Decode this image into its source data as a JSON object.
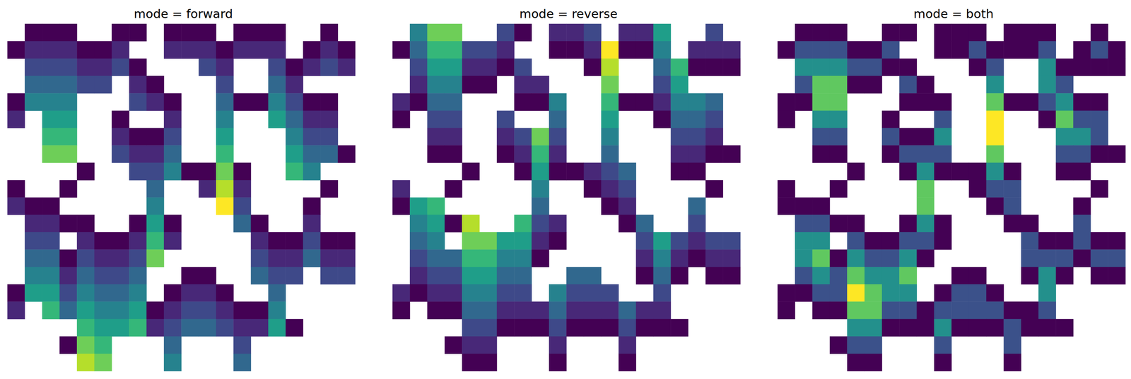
{
  "chart_data": [
    {
      "type": "heatmap",
      "title": "mode = forward",
      "color": "viridis",
      "tick_labels": false,
      "zlim": [
        0,
        9
      ],
      "cells": [
        [
          null,
          0,
          0,
          0,
          null,
          null,
          0,
          0,
          null,
          0,
          0,
          0,
          null,
          0,
          0,
          0,
          null,
          null,
          0,
          null
        ],
        [
          0,
          1,
          1,
          1,
          0,
          0,
          1,
          null,
          null,
          1,
          1,
          1,
          0,
          1,
          1,
          1,
          null,
          0,
          1,
          0
        ],
        [
          null,
          2,
          2,
          2,
          1,
          1,
          2,
          0,
          null,
          null,
          null,
          2,
          1,
          null,
          null,
          2,
          0,
          1,
          2,
          1
        ],
        [
          null,
          3,
          3,
          3,
          2,
          2,
          null,
          1,
          0,
          null,
          null,
          null,
          2,
          null,
          null,
          3,
          1,
          null,
          null,
          null
        ],
        [
          0,
          4,
          4,
          4,
          null,
          null,
          null,
          2,
          1,
          0,
          null,
          null,
          3,
          0,
          0,
          4,
          2,
          0,
          0,
          null
        ],
        [
          1,
          null,
          5,
          5,
          null,
          null,
          0,
          null,
          null,
          1,
          null,
          null,
          4,
          null,
          null,
          5,
          3,
          1,
          1,
          null
        ],
        [
          null,
          null,
          6,
          6,
          null,
          null,
          1,
          0,
          0,
          2,
          null,
          null,
          5,
          null,
          null,
          null,
          4,
          2,
          2,
          null
        ],
        [
          null,
          null,
          7,
          7,
          null,
          null,
          2,
          1,
          1,
          3,
          null,
          null,
          6,
          null,
          null,
          null,
          5,
          3,
          3,
          0
        ],
        [
          null,
          null,
          null,
          null,
          0,
          null,
          null,
          2,
          2,
          4,
          0,
          0,
          7,
          0,
          null,
          null,
          6,
          4,
          null,
          null
        ],
        [
          0,
          null,
          null,
          0,
          null,
          null,
          null,
          null,
          3,
          null,
          null,
          1,
          8,
          1,
          null,
          null,
          null,
          null,
          0,
          null
        ],
        [
          1,
          0,
          0,
          null,
          null,
          null,
          null,
          null,
          4,
          null,
          null,
          null,
          9,
          2,
          null,
          null,
          null,
          0,
          null,
          null
        ],
        [
          null,
          1,
          1,
          0,
          0,
          null,
          null,
          0,
          5,
          0,
          null,
          null,
          null,
          3,
          0,
          null,
          null,
          1,
          null,
          null
        ],
        [
          null,
          2,
          2,
          null,
          1,
          0,
          0,
          1,
          6,
          1,
          null,
          null,
          null,
          null,
          1,
          0,
          0,
          2,
          0,
          0
        ],
        [
          null,
          3,
          3,
          0,
          2,
          1,
          1,
          2,
          7,
          null,
          null,
          null,
          null,
          null,
          2,
          1,
          1,
          3,
          1,
          1
        ],
        [
          null,
          4,
          4,
          1,
          3,
          2,
          2,
          3,
          null,
          null,
          0,
          0,
          null,
          null,
          3,
          2,
          2,
          null,
          2,
          2
        ],
        [
          0,
          5,
          5,
          2,
          4,
          3,
          3,
          4,
          null,
          0,
          1,
          1,
          0,
          null,
          null,
          3,
          null,
          null,
          null,
          null
        ],
        [
          1,
          null,
          6,
          3,
          5,
          4,
          4,
          5,
          0,
          1,
          2,
          2,
          1,
          0,
          0,
          4,
          null,
          null,
          null,
          null
        ],
        [
          null,
          null,
          null,
          null,
          6,
          5,
          5,
          6,
          1,
          2,
          3,
          3,
          2,
          1,
          1,
          5,
          0,
          null,
          null,
          null
        ],
        [
          null,
          null,
          null,
          0,
          7,
          6,
          null,
          null,
          null,
          3,
          null,
          null,
          null,
          2,
          null,
          null,
          null,
          null,
          null,
          null
        ],
        [
          null,
          null,
          null,
          null,
          8,
          7,
          null,
          null,
          null,
          4,
          null,
          null,
          null,
          3,
          null,
          null,
          null,
          null,
          null,
          null
        ]
      ]
    },
    {
      "type": "heatmap",
      "title": "mode = reverse",
      "color": "viridis",
      "tick_labels": false,
      "zlim": [
        0,
        9
      ],
      "cells": [
        [
          null,
          4,
          7,
          7,
          null,
          null,
          2,
          0,
          null,
          1,
          1,
          2,
          null,
          1,
          1,
          5,
          null,
          null,
          2,
          null
        ],
        [
          0,
          3,
          6,
          6,
          2,
          2,
          1,
          null,
          null,
          0,
          0,
          1,
          9,
          0,
          0,
          4,
          null,
          1,
          1,
          1
        ],
        [
          null,
          2,
          5,
          5,
          1,
          1,
          0,
          2,
          null,
          null,
          null,
          0,
          8,
          null,
          null,
          3,
          6,
          0,
          0,
          0
        ],
        [
          null,
          1,
          4,
          4,
          0,
          0,
          null,
          1,
          1,
          null,
          null,
          null,
          7,
          null,
          null,
          2,
          5,
          null,
          null,
          null
        ],
        [
          1,
          0,
          3,
          3,
          null,
          null,
          null,
          0,
          0,
          4,
          null,
          null,
          6,
          0,
          0,
          1,
          4,
          4,
          3,
          null
        ],
        [
          0,
          null,
          2,
          2,
          null,
          null,
          2,
          null,
          null,
          3,
          null,
          null,
          5,
          null,
          null,
          0,
          3,
          3,
          2,
          null
        ],
        [
          null,
          null,
          1,
          1,
          null,
          null,
          1,
          2,
          7,
          2,
          null,
          null,
          4,
          null,
          null,
          null,
          2,
          2,
          1,
          null
        ],
        [
          null,
          null,
          0,
          0,
          null,
          null,
          0,
          1,
          6,
          1,
          null,
          null,
          3,
          null,
          null,
          null,
          1,
          1,
          0,
          0
        ],
        [
          null,
          null,
          null,
          null,
          0,
          null,
          null,
          0,
          5,
          0,
          0,
          1,
          2,
          3,
          null,
          null,
          0,
          0,
          null,
          null
        ],
        [
          1,
          null,
          null,
          0,
          null,
          null,
          null,
          null,
          4,
          null,
          null,
          0,
          1,
          2,
          null,
          null,
          null,
          null,
          0,
          null
        ],
        [
          0,
          5,
          6,
          null,
          null,
          null,
          null,
          null,
          3,
          null,
          null,
          null,
          0,
          1,
          null,
          null,
          null,
          3,
          null,
          null
        ],
        [
          null,
          4,
          5,
          0,
          8,
          null,
          null,
          6,
          2,
          1,
          null,
          null,
          null,
          0,
          3,
          null,
          null,
          2,
          null,
          null
        ],
        [
          null,
          3,
          4,
          null,
          7,
          7,
          5,
          5,
          1,
          0,
          null,
          null,
          null,
          null,
          2,
          5,
          2,
          1,
          2,
          2
        ],
        [
          null,
          2,
          3,
          3,
          6,
          6,
          4,
          4,
          0,
          null,
          null,
          null,
          null,
          null,
          1,
          4,
          1,
          0,
          1,
          1
        ],
        [
          null,
          1,
          2,
          2,
          5,
          5,
          3,
          3,
          null,
          null,
          3,
          3,
          null,
          null,
          0,
          3,
          0,
          null,
          0,
          0
        ],
        [
          1,
          0,
          1,
          1,
          4,
          4,
          2,
          2,
          null,
          4,
          2,
          2,
          2,
          null,
          null,
          2,
          null,
          null,
          null,
          null
        ],
        [
          0,
          null,
          0,
          0,
          3,
          3,
          1,
          1,
          1,
          3,
          1,
          1,
          1,
          3,
          1,
          1,
          null,
          null,
          null,
          null
        ],
        [
          null,
          null,
          null,
          null,
          2,
          2,
          0,
          0,
          0,
          2,
          0,
          0,
          0,
          2,
          0,
          0,
          0,
          null,
          null,
          null
        ],
        [
          null,
          null,
          null,
          0,
          1,
          1,
          null,
          null,
          null,
          1,
          null,
          null,
          null,
          1,
          null,
          null,
          null,
          null,
          null,
          null
        ],
        [
          null,
          null,
          null,
          null,
          0,
          0,
          null,
          null,
          null,
          0,
          null,
          null,
          null,
          0,
          null,
          null,
          null,
          null,
          null,
          null
        ]
      ]
    },
    {
      "type": "heatmap",
      "title": "mode = both",
      "color": "viridis",
      "tick_labels": false,
      "zlim": [
        0,
        8
      ],
      "cells": [
        [
          null,
          0,
          0,
          0,
          null,
          null,
          0,
          0,
          null,
          0,
          0,
          0,
          null,
          0,
          0,
          0,
          null,
          null,
          0,
          null
        ],
        [
          0,
          2,
          2,
          2,
          0,
          0,
          2,
          null,
          null,
          0,
          0,
          2,
          0,
          0,
          0,
          2,
          null,
          0,
          2,
          0
        ],
        [
          null,
          4,
          4,
          4,
          2,
          2,
          0,
          0,
          null,
          null,
          null,
          0,
          2,
          null,
          null,
          4,
          0,
          0,
          0,
          0
        ],
        [
          null,
          2,
          6,
          6,
          0,
          0,
          null,
          2,
          0,
          null,
          null,
          null,
          4,
          null,
          null,
          4,
          2,
          null,
          null,
          null
        ],
        [
          0,
          0,
          6,
          6,
          null,
          null,
          null,
          0,
          0,
          0,
          null,
          null,
          6,
          0,
          0,
          2,
          4,
          0,
          0,
          null
        ],
        [
          0,
          null,
          4,
          4,
          null,
          null,
          0,
          null,
          null,
          2,
          null,
          null,
          8,
          null,
          null,
          0,
          6,
          2,
          2,
          null
        ],
        [
          null,
          null,
          2,
          2,
          null,
          null,
          2,
          0,
          0,
          4,
          null,
          null,
          8,
          null,
          null,
          null,
          4,
          4,
          2,
          null
        ],
        [
          null,
          null,
          0,
          0,
          null,
          null,
          0,
          2,
          2,
          2,
          null,
          null,
          6,
          null,
          null,
          null,
          2,
          2,
          0,
          0
        ],
        [
          null,
          null,
          null,
          null,
          0,
          null,
          null,
          0,
          4,
          0,
          0,
          0,
          4,
          0,
          null,
          null,
          0,
          0,
          null,
          null
        ],
        [
          0,
          null,
          null,
          0,
          null,
          null,
          null,
          null,
          6,
          null,
          null,
          0,
          2,
          2,
          null,
          null,
          null,
          null,
          0,
          null
        ],
        [
          0,
          0,
          0,
          null,
          null,
          null,
          null,
          null,
          6,
          null,
          null,
          null,
          0,
          2,
          null,
          null,
          null,
          0,
          null,
          null
        ],
        [
          null,
          2,
          2,
          0,
          0,
          null,
          null,
          0,
          4,
          0,
          null,
          null,
          null,
          0,
          0,
          null,
          null,
          2,
          null,
          null
        ],
        [
          null,
          4,
          4,
          null,
          2,
          0,
          0,
          2,
          2,
          0,
          null,
          null,
          null,
          null,
          2,
          0,
          0,
          2,
          0,
          0
        ],
        [
          null,
          4,
          6,
          0,
          4,
          2,
          2,
          4,
          0,
          null,
          null,
          null,
          null,
          null,
          2,
          2,
          2,
          0,
          2,
          2
        ],
        [
          null,
          2,
          4,
          2,
          6,
          4,
          4,
          6,
          null,
          null,
          0,
          0,
          null,
          null,
          0,
          4,
          0,
          null,
          0,
          0
        ],
        [
          0,
          0,
          2,
          2,
          8,
          6,
          4,
          4,
          null,
          0,
          2,
          2,
          0,
          null,
          null,
          4,
          null,
          null,
          null,
          null
        ],
        [
          0,
          null,
          0,
          0,
          6,
          6,
          2,
          2,
          0,
          2,
          2,
          2,
          2,
          0,
          0,
          2,
          null,
          null,
          null,
          null
        ],
        [
          null,
          null,
          null,
          null,
          4,
          4,
          0,
          0,
          0,
          4,
          0,
          0,
          0,
          2,
          0,
          0,
          0,
          null,
          null,
          null
        ],
        [
          null,
          null,
          null,
          0,
          2,
          2,
          null,
          null,
          null,
          2,
          null,
          null,
          null,
          2,
          null,
          null,
          null,
          null,
          null,
          null
        ],
        [
          null,
          null,
          null,
          null,
          0,
          0,
          null,
          null,
          null,
          0,
          null,
          null,
          null,
          0,
          null,
          null,
          null,
          null,
          null,
          null
        ]
      ]
    }
  ]
}
